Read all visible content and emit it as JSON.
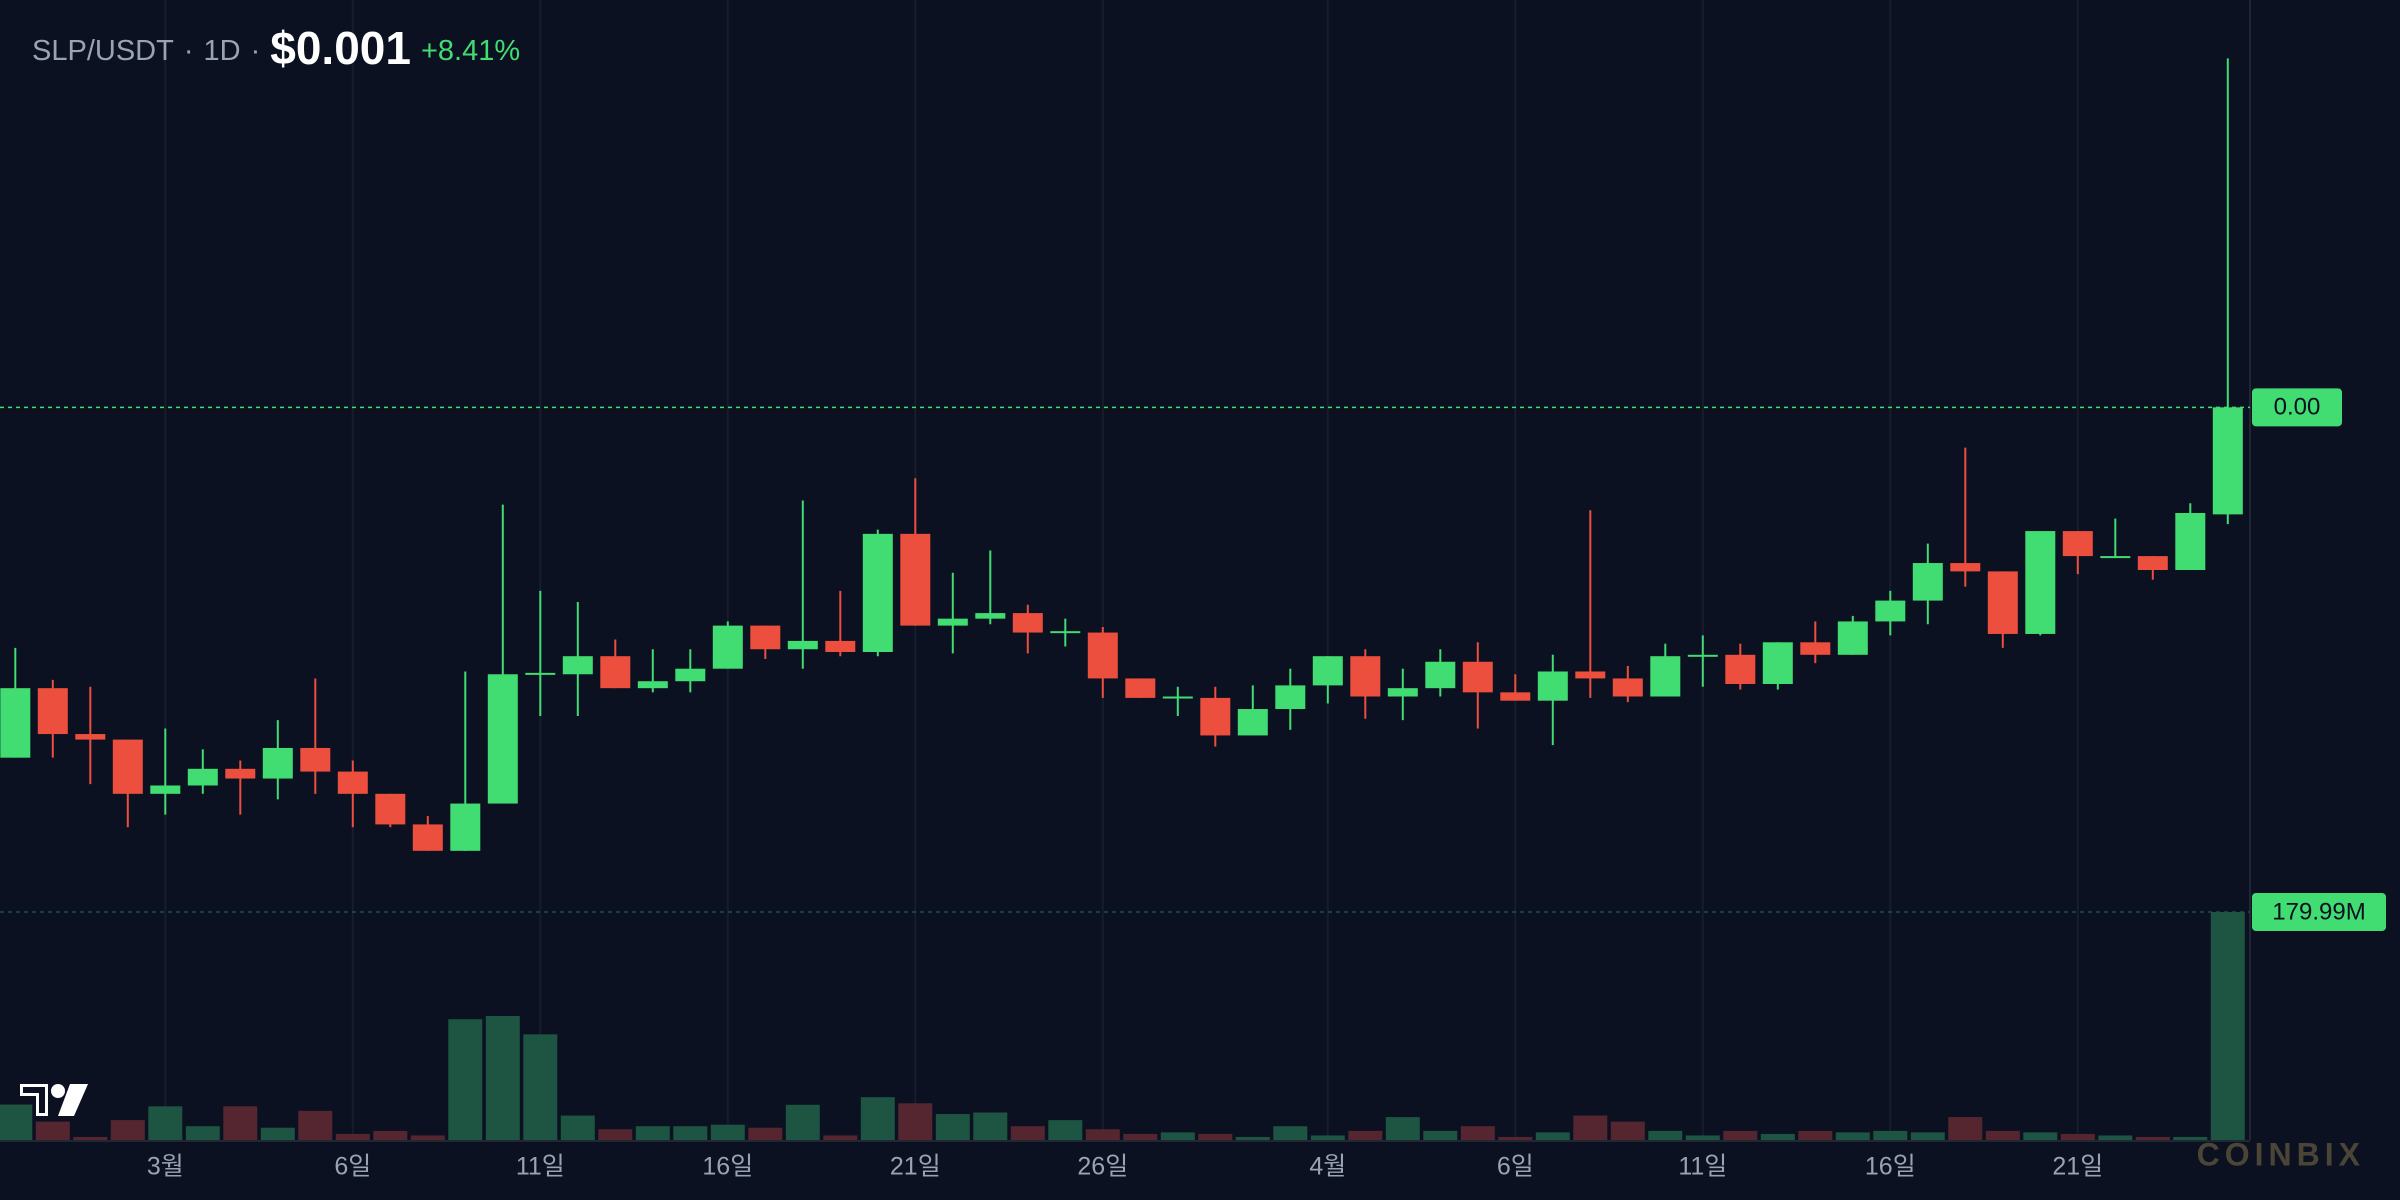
{
  "chart_data": {
    "type": "candlestick",
    "symbol": "SLP/USDT",
    "separator": "·",
    "interval": "1D",
    "price": "$0.001",
    "change": "+8.41%",
    "watermark": "COINBIX",
    "categories": [
      null,
      null,
      null,
      null,
      "3월",
      null,
      null,
      null,
      null,
      "6일",
      null,
      null,
      null,
      null,
      "11일",
      null,
      null,
      null,
      null,
      "16일",
      null,
      null,
      null,
      null,
      "21일",
      null,
      null,
      null,
      null,
      "26일",
      null,
      null,
      null,
      null,
      null,
      "4월",
      null,
      null,
      null,
      null,
      "6일",
      null,
      null,
      null,
      null,
      "11일",
      null,
      null,
      null,
      null,
      "16일",
      null,
      null,
      null,
      null,
      "21일",
      null,
      null,
      null,
      null
    ],
    "open": [
      0.000748,
      0.000798,
      0.000765,
      0.000761,
      0.000722,
      0.000728,
      0.00074,
      0.000733,
      0.000755,
      0.000738,
      0.000722,
      0.0007,
      0.000681,
      0.000715,
      0.000808,
      0.000808,
      0.000821,
      0.000798,
      0.000803,
      0.000812,
      0.000843,
      0.000826,
      0.000832,
      0.000824,
      0.000909,
      0.000843,
      0.000848,
      0.000852,
      0.000838,
      0.000838,
      0.000805,
      0.000791,
      0.000791,
      0.000764,
      0.000783,
      0.0008,
      0.000821,
      0.000792,
      0.000798,
      0.000817,
      0.000795,
      0.000789,
      0.00081,
      0.000805,
      0.000792,
      0.000821,
      0.000822,
      0.000801,
      0.000831,
      0.000822,
      0.000846,
      0.000861,
      0.000888,
      0.000882,
      0.000837,
      0.000911,
      0.000892,
      0.000893,
      0.000883,
      0.000923
    ],
    "high": [
      0.000827,
      0.000804,
      0.000799,
      0.000761,
      0.000769,
      0.000754,
      0.000746,
      0.000775,
      0.000805,
      0.000746,
      0.000722,
      0.000706,
      0.00081,
      0.00093,
      0.000868,
      0.00086,
      0.000833,
      0.000826,
      0.000826,
      0.000846,
      0.000843,
      0.000933,
      0.000868,
      0.000912,
      0.000949,
      0.000881,
      0.000897,
      0.000858,
      0.000848,
      0.000842,
      0.000805,
      0.000799,
      0.000799,
      0.0008,
      0.000812,
      0.000821,
      0.000826,
      0.000812,
      0.000826,
      0.000831,
      0.000808,
      0.000822,
      0.000926,
      0.000814,
      0.00083,
      0.000836,
      0.00083,
      0.000831,
      0.000846,
      0.00085,
      0.000868,
      0.000902,
      0.000971,
      0.000882,
      0.000911,
      0.000911,
      0.00092,
      0.000893,
      0.000931,
      0.001251
    ],
    "low": [
      0.000748,
      0.000748,
      0.000729,
      0.000698,
      0.000707,
      0.000722,
      0.000707,
      0.000718,
      0.000722,
      0.000698,
      0.000698,
      0.000681,
      0.000681,
      0.000715,
      0.000778,
      0.000778,
      0.000798,
      0.000795,
      0.000795,
      0.000812,
      0.000819,
      0.000812,
      0.000821,
      0.000821,
      0.000843,
      0.000823,
      0.000844,
      0.000823,
      0.000828,
      0.000791,
      0.000791,
      0.000778,
      0.000756,
      0.000764,
      0.000768,
      0.000787,
      0.000776,
      0.000775,
      0.000792,
      0.000769,
      0.000789,
      0.000757,
      0.000791,
      0.000788,
      0.000792,
      0.000799,
      0.000797,
      0.000797,
      0.000816,
      0.000822,
      0.000836,
      0.000844,
      0.000871,
      0.000827,
      0.000836,
      0.00088,
      0.000892,
      0.000876,
      0.000883,
      0.000916
    ],
    "close": [
      0.000798,
      0.000765,
      0.000761,
      0.000722,
      0.000728,
      0.00074,
      0.000733,
      0.000755,
      0.000738,
      0.000722,
      0.0007,
      0.000681,
      0.000715,
      0.000808,
      0.000809,
      0.000821,
      0.000798,
      0.000803,
      0.000812,
      0.000843,
      0.000826,
      0.000832,
      0.000824,
      0.000909,
      0.000843,
      0.000848,
      0.000852,
      0.000838,
      0.000839,
      0.000805,
      0.000791,
      0.000792,
      0.000764,
      0.000783,
      0.0008,
      0.000821,
      0.000792,
      0.000798,
      0.000817,
      0.000795,
      0.000789,
      0.00081,
      0.000805,
      0.000792,
      0.000821,
      0.000822,
      0.000801,
      0.000831,
      0.000822,
      0.000846,
      0.000861,
      0.000888,
      0.000882,
      0.000837,
      0.000911,
      0.000893,
      0.000893,
      0.000883,
      0.000924,
      0.001
    ],
    "volume": [
      28000000,
      14500000,
      2400000,
      15700000,
      26600000,
      10900000,
      26600000,
      9700000,
      23000000,
      4800000,
      7200000,
      3600000,
      95400000,
      97900000,
      83400000,
      19300000,
      8500000,
      10900000,
      10900000,
      12100000,
      9700000,
      27800000,
      3600000,
      33800000,
      29000000,
      20500000,
      21700000,
      10900000,
      15700000,
      8500000,
      4800000,
      6000000,
      4800000,
      2400000,
      10900000,
      3600000,
      7200000,
      18100000,
      7200000,
      10900000,
      2400000,
      6000000,
      19300000,
      14500000,
      7200000,
      3600000,
      7200000,
      4800000,
      7200000,
      6000000,
      7200000,
      6000000,
      18100000,
      7200000,
      6000000,
      4800000,
      3600000,
      2400000,
      2400000,
      179990000
    ],
    "last_close_label": "0.00",
    "last_volume_label": "179.99M",
    "ylim": [
      0.000473,
      0.001293
    ],
    "y2lim": [
      0,
      900000000
    ],
    "grid": true,
    "up_color": "#41dc72",
    "down_color": "#ec4f3e",
    "volume_up_color": "#1d5442",
    "volume_down_color": "#552630"
  }
}
